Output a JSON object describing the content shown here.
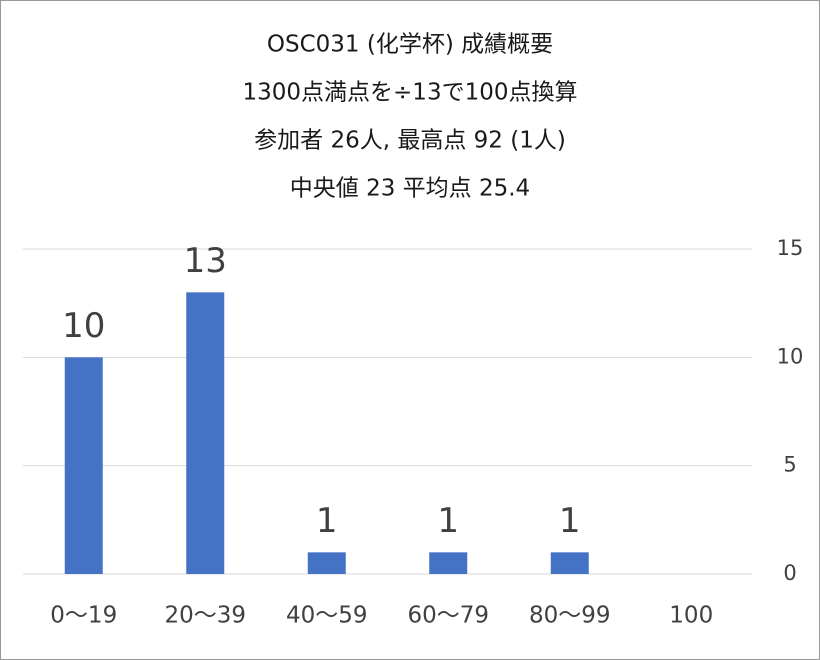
{
  "chart_data": {
    "type": "bar",
    "title": "OSC031 (化学杯) 成績概要",
    "subtitle": [
      "1300点満点を÷13で100点換算",
      "参加者 26人, 最高点 92 (1人)",
      "中央値 23 平均点 25.4"
    ],
    "categories": [
      "0〜19",
      "20〜39",
      "40〜59",
      "60〜79",
      "80〜99",
      "100"
    ],
    "values": [
      10,
      13,
      1,
      1,
      1,
      null
    ],
    "color": "#4472c4",
    "ylim": [
      0,
      15
    ],
    "yticks": [
      0,
      5,
      10,
      15
    ],
    "grid": true,
    "y_axis_side": "right"
  }
}
